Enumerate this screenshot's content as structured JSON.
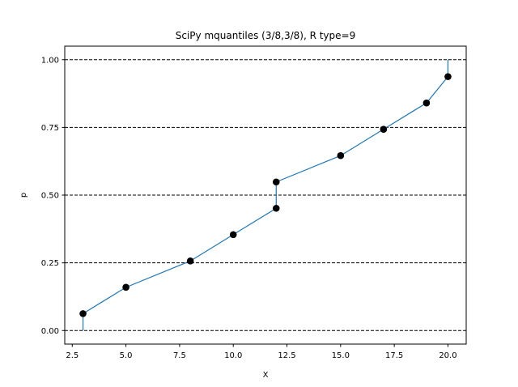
{
  "chart_data": {
    "type": "line",
    "title": "SciPy mquantiles (3/8,3/8), R type=9",
    "xlabel": "X",
    "ylabel": "p",
    "xlim": [
      2.15,
      20.85
    ],
    "ylim": [
      -0.05,
      1.05
    ],
    "x_ticks": [
      2.5,
      5.0,
      7.5,
      10.0,
      12.5,
      15.0,
      17.5,
      20.0
    ],
    "x_tick_labels": [
      "2.5",
      "5.0",
      "7.5",
      "10.0",
      "12.5",
      "15.0",
      "17.5",
      "20.0"
    ],
    "y_ticks": [
      0.0,
      0.25,
      0.5,
      0.75,
      1.0
    ],
    "y_tick_labels": [
      "0.00",
      "0.25",
      "0.50",
      "0.75",
      "1.00"
    ],
    "grid": "horizontal dashed at y ticks",
    "line_color": "#1f77b4",
    "point_color": "#000000",
    "grid_color": "#000000",
    "series": [
      {
        "line_x": [
          3,
          3,
          5,
          8,
          10,
          12,
          12,
          15,
          17,
          19,
          20,
          20
        ],
        "line_y": [
          0.0,
          0.0625,
          0.1597,
          0.2569,
          0.3542,
          0.4514,
          0.5486,
          0.6458,
          0.7431,
          0.8403,
          0.9375,
          1.0
        ],
        "points_x": [
          3,
          5,
          8,
          10,
          12,
          12,
          15,
          17,
          19,
          20
        ],
        "points_y": [
          0.0625,
          0.1597,
          0.2569,
          0.3542,
          0.4514,
          0.5486,
          0.6458,
          0.7431,
          0.8403,
          0.9375
        ]
      }
    ]
  }
}
